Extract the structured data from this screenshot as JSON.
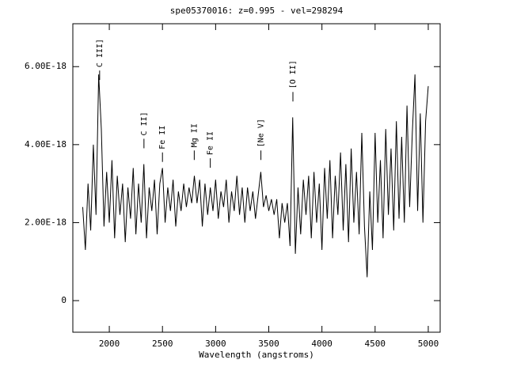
{
  "chart_data": {
    "type": "line",
    "title": "spe05370016: z=0.995 - vel=298294",
    "x_label": "Wavelength (angstroms)",
    "color": "#000000",
    "xlim": [
      1657,
      5112
    ],
    "ylim": [
      -8.1e-19,
      7.1e-18
    ],
    "xticks": [
      2000,
      2500,
      3000,
      3500,
      4000,
      4500,
      5000
    ],
    "yticks": [
      0,
      {
        "value": 2e-18,
        "label": "2.00E-18"
      },
      {
        "value": 4e-18,
        "label": "4.00E-18"
      },
      {
        "value": 6e-18,
        "label": "6.00E-18"
      }
    ],
    "x": [
      1750,
      1775,
      1800,
      1825,
      1850,
      1875,
      1900,
      1925,
      1950,
      1975,
      2000,
      2025,
      2050,
      2075,
      2100,
      2125,
      2150,
      2175,
      2200,
      2225,
      2250,
      2275,
      2300,
      2325,
      2350,
      2375,
      2400,
      2425,
      2450,
      2475,
      2500,
      2525,
      2550,
      2575,
      2600,
      2625,
      2650,
      2675,
      2700,
      2725,
      2750,
      2775,
      2800,
      2825,
      2850,
      2875,
      2900,
      2925,
      2950,
      2975,
      3000,
      3025,
      3050,
      3075,
      3100,
      3125,
      3150,
      3175,
      3200,
      3225,
      3250,
      3275,
      3300,
      3325,
      3350,
      3375,
      3400,
      3425,
      3450,
      3475,
      3500,
      3525,
      3550,
      3575,
      3600,
      3625,
      3650,
      3675,
      3700,
      3725,
      3750,
      3775,
      3800,
      3825,
      3850,
      3875,
      3900,
      3925,
      3950,
      3975,
      4000,
      4025,
      4050,
      4075,
      4100,
      4125,
      4150,
      4175,
      4200,
      4225,
      4250,
      4275,
      4300,
      4325,
      4350,
      4375,
      4400,
      4425,
      4450,
      4475,
      4500,
      4525,
      4550,
      4575,
      4600,
      4625,
      4650,
      4675,
      4700,
      4725,
      4750,
      4775,
      4800,
      4825,
      4850,
      4875,
      4900,
      4925,
      4950,
      4975,
      5000
    ],
    "values": [
      2.4e-18,
      1.3e-18,
      3e-18,
      1.8e-18,
      4e-18,
      2.2e-18,
      5.8e-18,
      4.4e-18,
      1.9e-18,
      3.3e-18,
      2e-18,
      3.6e-18,
      1.6e-18,
      3.2e-18,
      2.2e-18,
      3e-18,
      1.5e-18,
      2.9e-18,
      2.1e-18,
      3.4e-18,
      1.7e-18,
      3e-18,
      2e-18,
      3.5e-18,
      1.6e-18,
      2.9e-18,
      2.3e-18,
      3.1e-18,
      1.7e-18,
      3e-18,
      3.4e-18,
      2e-18,
      2.9e-18,
      2.3e-18,
      3.1e-18,
      1.9e-18,
      2.8e-18,
      2.3e-18,
      3e-18,
      2.4e-18,
      2.9e-18,
      2.5e-18,
      3.2e-18,
      2.5e-18,
      3.1e-18,
      1.9e-18,
      3e-18,
      2.2e-18,
      2.9e-18,
      2.3e-18,
      3.1e-18,
      2.1e-18,
      2.8e-18,
      2.4e-18,
      3.1e-18,
      2e-18,
      2.8e-18,
      2.3e-18,
      3.2e-18,
      2.2e-18,
      2.9e-18,
      2e-18,
      2.9e-18,
      2.3e-18,
      2.8e-18,
      2.1e-18,
      2.7e-18,
      3.3e-18,
      2.4e-18,
      2.7e-18,
      2.3e-18,
      2.6e-18,
      2.2e-18,
      2.6e-18,
      1.6e-18,
      2.5e-18,
      2e-18,
      2.5e-18,
      1.4e-18,
      4.7e-18,
      1.2e-18,
      2.9e-18,
      1.7e-18,
      3.1e-18,
      2.2e-18,
      3.2e-18,
      1.6e-18,
      3.3e-18,
      2e-18,
      3e-18,
      1.3e-18,
      3.4e-18,
      2.1e-18,
      3.6e-18,
      1.6e-18,
      3.2e-18,
      2.2e-18,
      3.8e-18,
      1.8e-18,
      3.5e-18,
      1.5e-18,
      3.9e-18,
      2e-18,
      3.3e-18,
      1.7e-18,
      4.3e-18,
      1.9e-18,
      6e-19,
      2.8e-18,
      1.3e-18,
      4.3e-18,
      2e-18,
      3.6e-18,
      1.6e-18,
      4.4e-18,
      2.2e-18,
      3.9e-18,
      1.8e-18,
      4.6e-18,
      2.1e-18,
      4.2e-18,
      2e-18,
      5e-18,
      2.4e-18,
      4.3e-18,
      5.8e-18,
      2.3e-18,
      4.8e-18,
      2e-18,
      4.6e-18,
      5.5e-18
    ],
    "annotations": [
      {
        "text": "C III]",
        "x": 1909,
        "y": 5.9e-18
      },
      {
        "text": "C II]",
        "x": 2326,
        "y": 4.15e-18
      },
      {
        "text": "Fe II",
        "x": 2500,
        "y": 3.8e-18
      },
      {
        "text": "Mg II",
        "x": 2799,
        "y": 3.85e-18
      },
      {
        "text": "Fe II",
        "x": 2950,
        "y": 3.65e-18
      },
      {
        "text": "[Ne V]",
        "x": 3426,
        "y": 3.85e-18
      },
      {
        "text": "[O II]",
        "x": 3727,
        "y": 5.35e-18
      }
    ]
  }
}
